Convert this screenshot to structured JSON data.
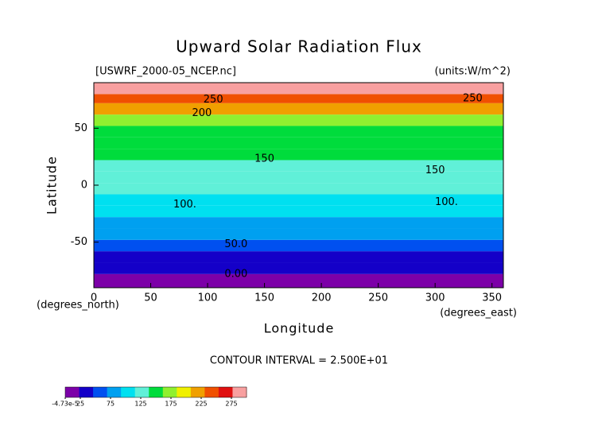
{
  "chart_data": {
    "type": "zonal-contour",
    "title": "Upward Solar Radiation Flux",
    "file_label": "[USWRF_2000-05_NCEP.nc]",
    "units_label": "(units:W/m^2)",
    "ylabel": "Latitude",
    "ylabel_units": "(degrees_north)",
    "xlabel": "Longitude",
    "xlabel_units": "(degrees_east)",
    "contour_interval": "CONTOUR INTERVAL = 2.500E+01",
    "xlim": [
      0,
      360
    ],
    "ylim": [
      -90,
      90
    ],
    "xticks": [
      0,
      50,
      100,
      150,
      200,
      250,
      300,
      350
    ],
    "yticks": [
      -50,
      0,
      50
    ],
    "lat_bins": [
      -90,
      -78,
      -68,
      -58,
      -48,
      -38,
      -28,
      -18,
      -8,
      2,
      12,
      22,
      32,
      42,
      52,
      62,
      72,
      80,
      90
    ],
    "values": [
      10,
      30,
      45,
      65,
      80,
      90,
      95,
      105,
      120,
      130,
      135,
      140,
      150,
      160,
      180,
      215,
      250,
      280
    ],
    "contour_labels": [
      {
        "text": "250",
        "x": 105,
        "y": 75
      },
      {
        "text": "200",
        "x": 95,
        "y": 63
      },
      {
        "text": "150",
        "x": 150,
        "y": 23
      },
      {
        "text": "100.",
        "x": 80,
        "y": -17
      },
      {
        "text": "50.0",
        "x": 125,
        "y": -52
      },
      {
        "text": "0.00",
        "x": 125,
        "y": -78
      },
      {
        "text": "250",
        "x": 333,
        "y": 76
      },
      {
        "text": "150",
        "x": 300,
        "y": 13
      },
      {
        "text": "100.",
        "x": 310,
        "y": -15
      }
    ],
    "colorbar": {
      "lim": [
        -4.73e-05,
        300
      ],
      "colors": [
        "#7c00a8",
        "#1400c8",
        "#0050f0",
        "#00a0f0",
        "#00e0f0",
        "#60f0d8",
        "#00dc3c",
        "#90f030",
        "#f0f000",
        "#f0a000",
        "#f05000",
        "#e01010",
        "#f8a0a0"
      ],
      "ticks": [
        {
          "value": -4.73e-05,
          "label": "-4.73e-5"
        },
        25,
        75,
        125,
        175,
        225,
        275
      ]
    }
  }
}
